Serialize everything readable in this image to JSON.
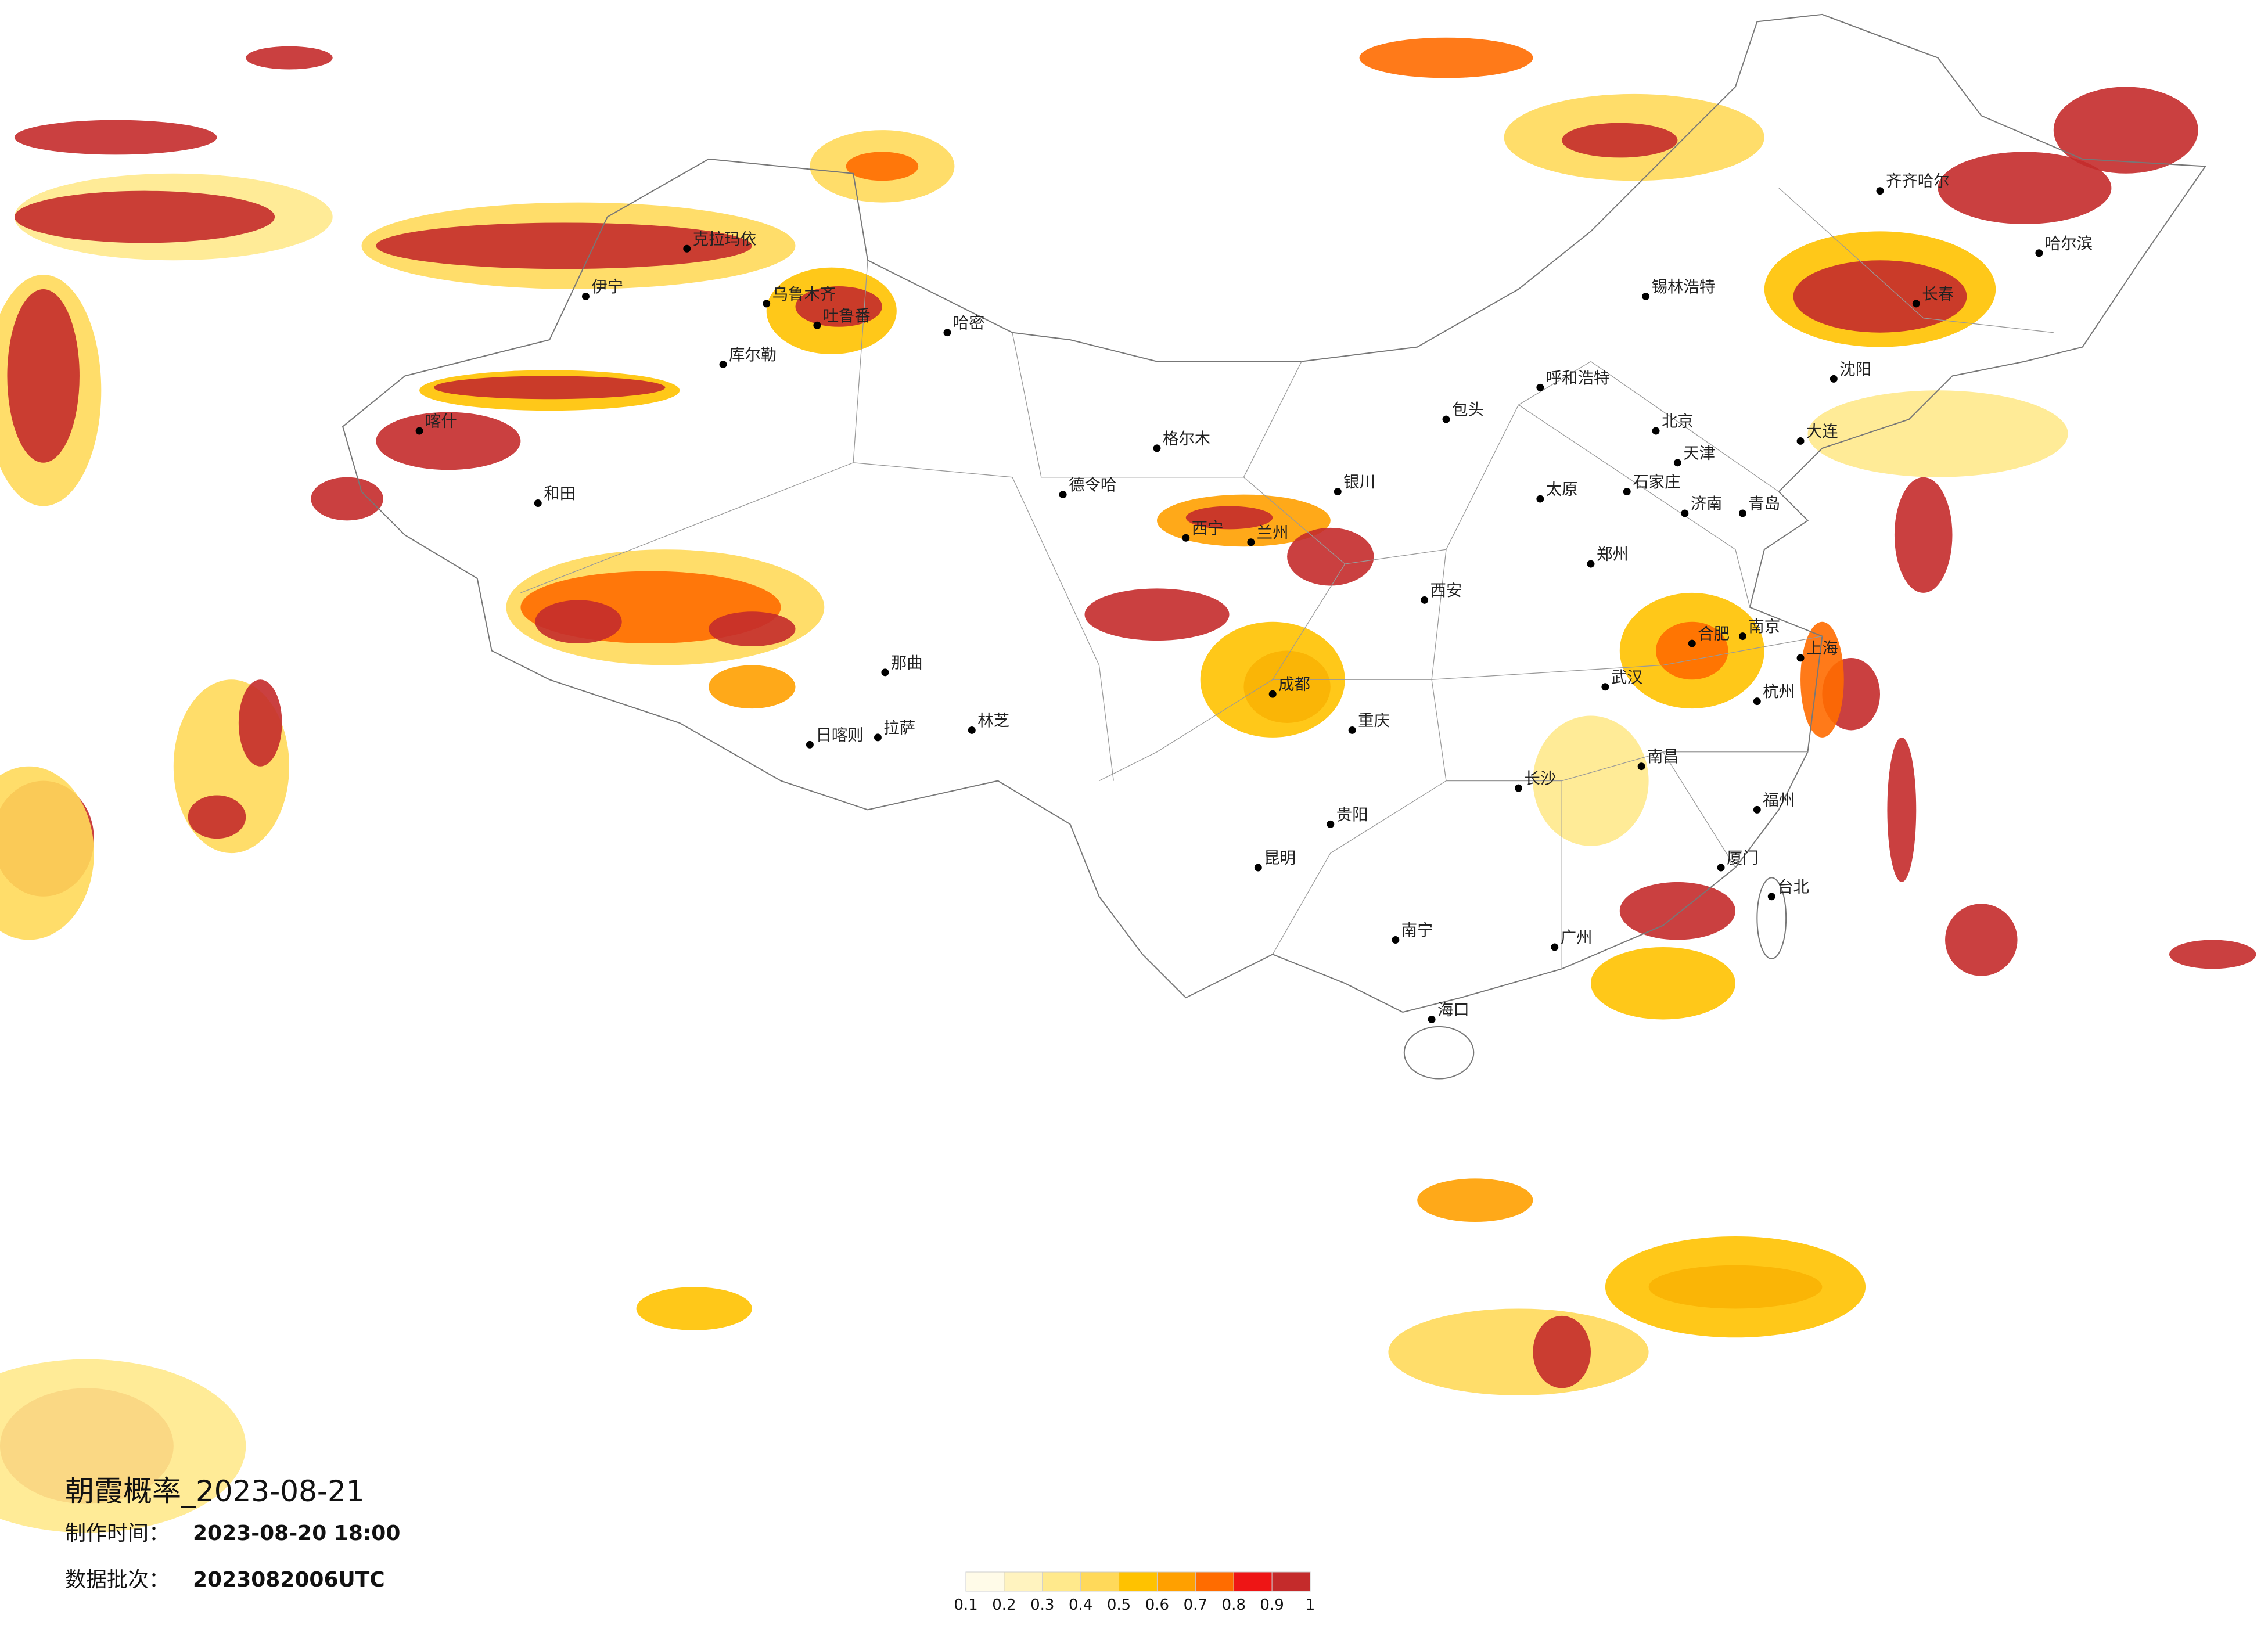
{
  "title": "朝霞概率_2023-08-21",
  "made_label": "制作时间：",
  "made_time": "2023-08-20 18:00",
  "batch_label": "数据批次：",
  "batch": "2023082006UTC",
  "legend": {
    "ticks": [
      0.1,
      0.2,
      0.3,
      0.4,
      0.5,
      0.6,
      0.7,
      0.8,
      0.9,
      1
    ],
    "colors": [
      "#fffbe8",
      "#fff3bf",
      "#ffe98c",
      "#ffd95a",
      "#ffc200",
      "#ffa000",
      "#ff6c00",
      "#ee1515",
      "#c42b2b"
    ]
  },
  "cities": [
    "克拉玛依",
    "伊宁",
    "乌鲁木齐",
    "吐鲁番",
    "哈密",
    "库尔勒",
    "和田",
    "喀什",
    "格尔木",
    "德令哈",
    "西宁",
    "兰州",
    "银川",
    "呼和浩特",
    "包头",
    "锡林浩特",
    "北京",
    "天津",
    "石家庄",
    "太原",
    "济南",
    "郑州",
    "西安",
    "成都",
    "重庆",
    "贵阳",
    "昆明",
    "南宁",
    "长沙",
    "武汉",
    "南昌",
    "合肥",
    "南京",
    "上海",
    "杭州",
    "福州",
    "广州",
    "海口",
    "拉萨",
    "日喀则",
    "那曲",
    "林芝",
    "沈阳",
    "长春",
    "哈尔滨",
    "齐齐哈尔",
    "大连",
    "青岛",
    "台北",
    "厦门"
  ]
}
